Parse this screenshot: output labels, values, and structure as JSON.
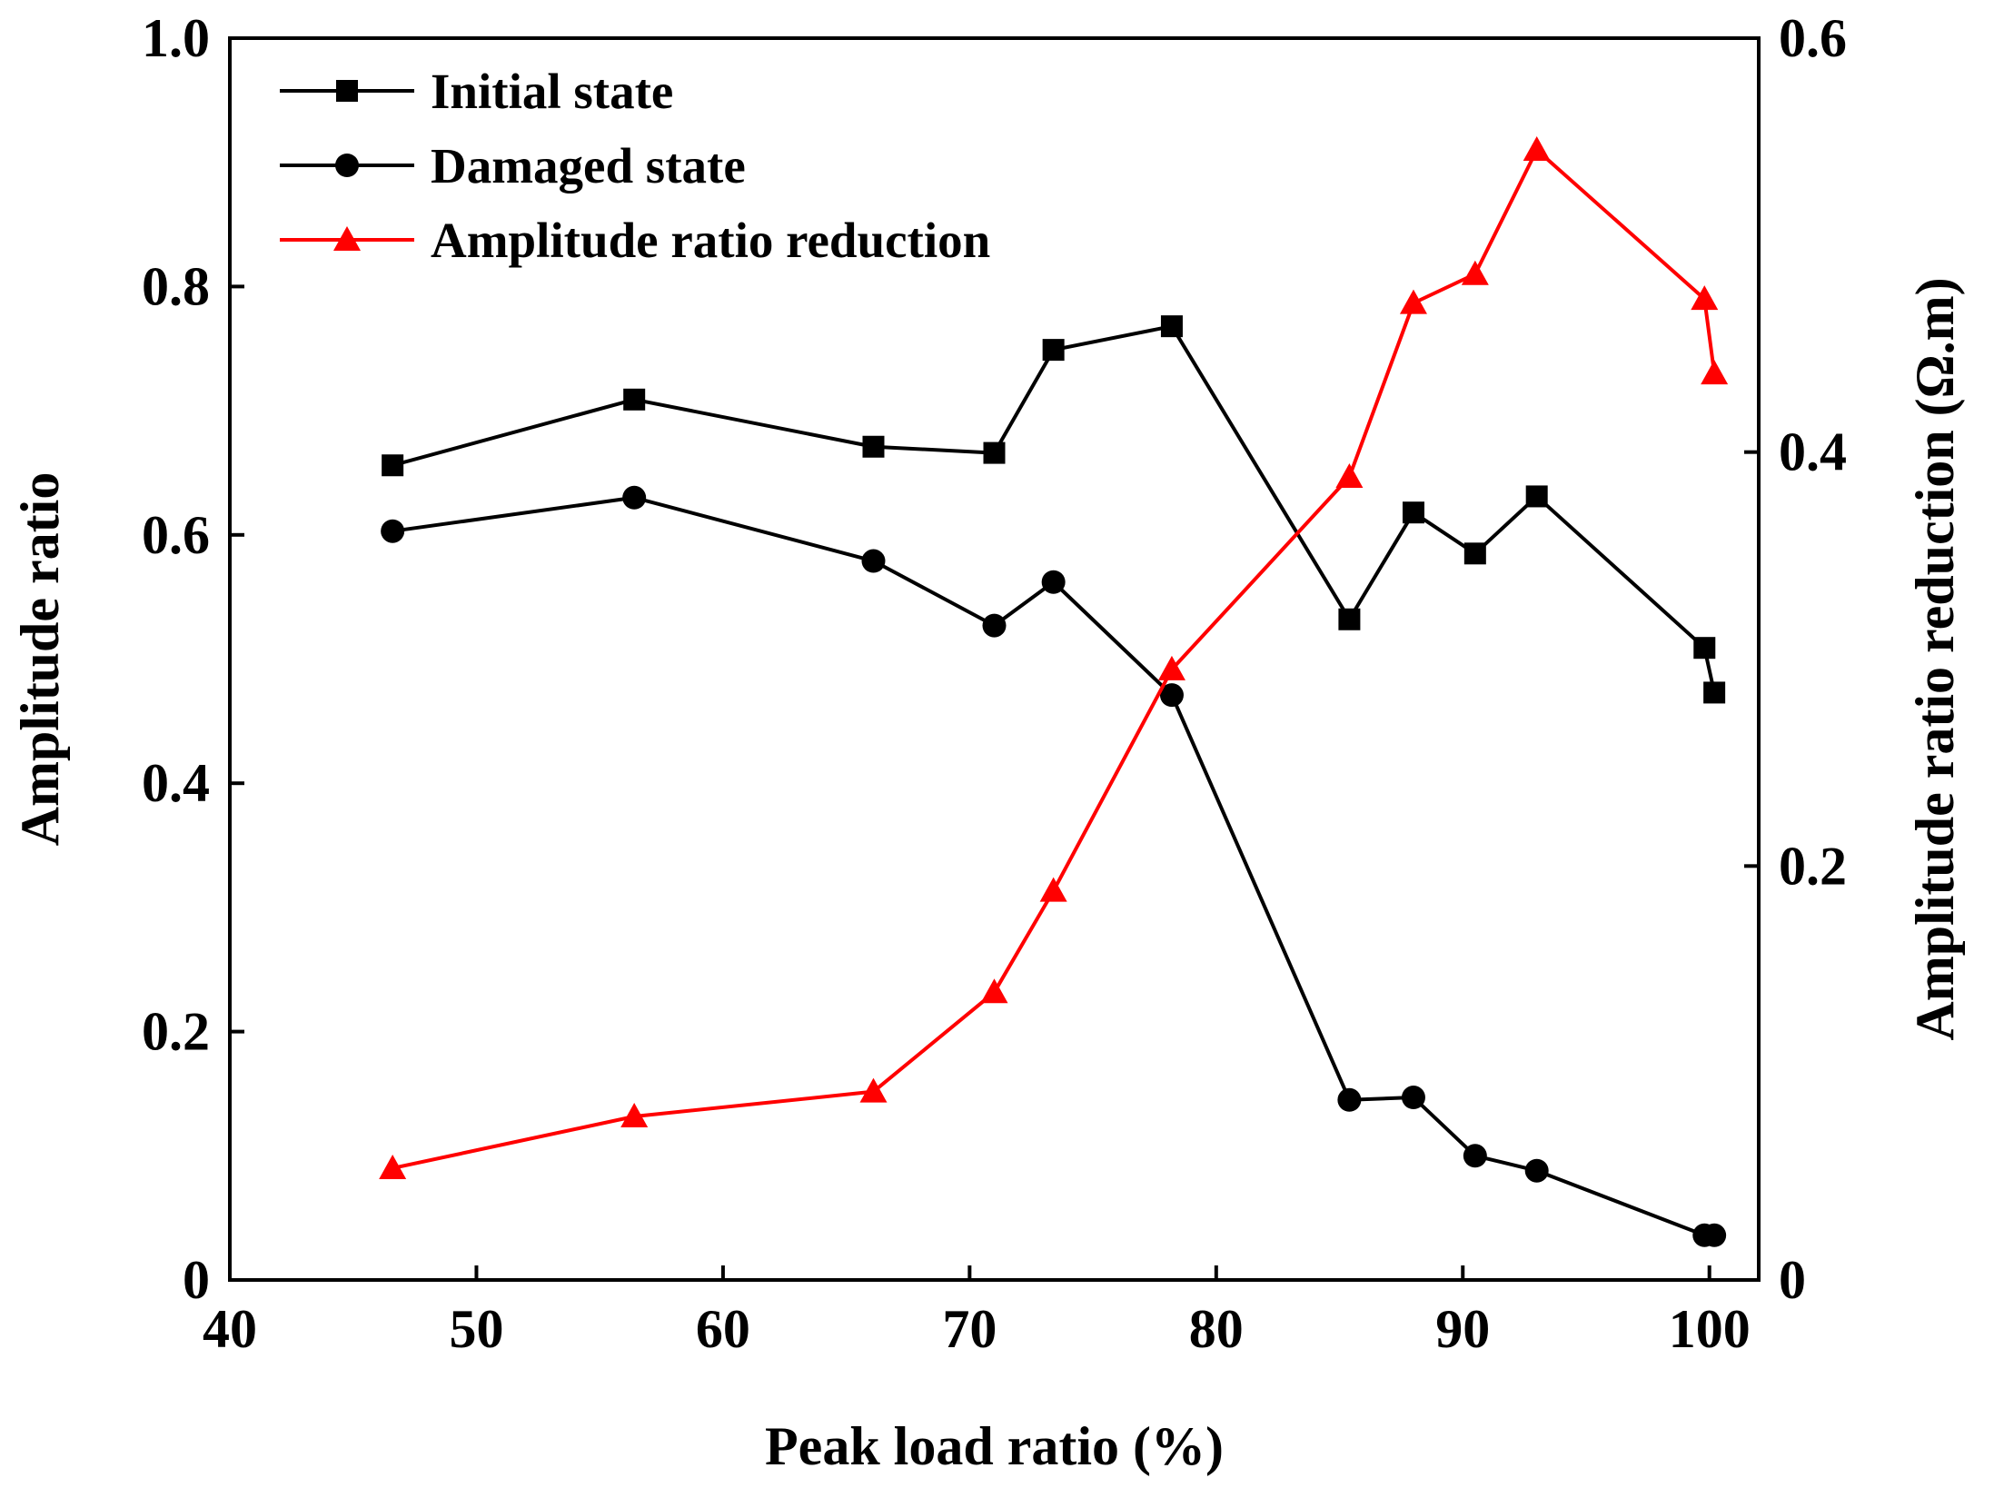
{
  "chart_data": {
    "type": "line",
    "xlabel": "Peak load ratio (%)",
    "ylabel": "Amplitude ratio",
    "y2label": "Amplitude ratio reduction (Ω.m)",
    "xlim": [
      40,
      102
    ],
    "ylim": [
      0,
      1.0
    ],
    "y2lim": [
      0,
      0.6
    ],
    "xticks": [
      40,
      50,
      60,
      70,
      80,
      90,
      100
    ],
    "yticks": [
      0,
      0.2,
      0.4,
      0.6,
      0.8,
      1.0
    ],
    "ytick_labels": [
      "0",
      "0.2",
      "0.4",
      "0.6",
      "0.8",
      "1.0"
    ],
    "y2ticks": [
      0,
      0.2,
      0.4,
      0.6
    ],
    "y2tick_labels": [
      "0",
      "0.2",
      "0.4",
      "0.6"
    ],
    "legend_position": "top-left",
    "grid": false,
    "series": [
      {
        "name": "Initial state",
        "axis": "left",
        "marker": "square",
        "color": "#000000",
        "x": [
          46.6,
          56.4,
          66.1,
          71.0,
          73.4,
          78.2,
          85.4,
          88.0,
          90.5,
          93.0,
          99.8,
          100.2
        ],
        "values": [
          0.656,
          0.709,
          0.671,
          0.666,
          0.749,
          0.768,
          0.532,
          0.618,
          0.585,
          0.631,
          0.509,
          0.473
        ]
      },
      {
        "name": "Damaged state",
        "axis": "left",
        "marker": "circle",
        "color": "#000000",
        "x": [
          46.6,
          56.4,
          66.1,
          71.0,
          73.4,
          78.2,
          85.4,
          88.0,
          90.5,
          93.0,
          99.8,
          100.2
        ],
        "values": [
          0.603,
          0.63,
          0.579,
          0.527,
          0.562,
          0.471,
          0.145,
          0.147,
          0.1,
          0.088,
          0.036,
          0.036
        ]
      },
      {
        "name": "Amplitude ratio reduction",
        "axis": "right",
        "marker": "triangle",
        "color": "#ff0000",
        "x": [
          46.6,
          56.4,
          66.1,
          71.0,
          73.4,
          78.2,
          85.4,
          88.0,
          90.5,
          93.0,
          99.8,
          100.2
        ],
        "values": [
          0.054,
          0.079,
          0.091,
          0.139,
          0.188,
          0.295,
          0.388,
          0.472,
          0.486,
          0.546,
          0.474,
          0.438
        ]
      }
    ]
  }
}
